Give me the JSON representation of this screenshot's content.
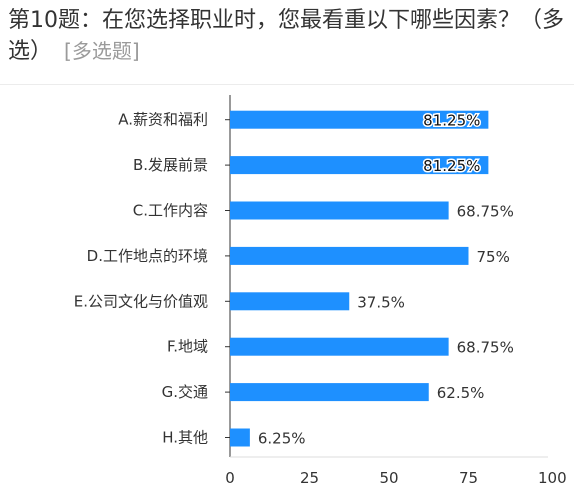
{
  "question": {
    "title": "第10题：在您选择职业时，您最看重以下哪些因素？（多选）",
    "tag": "[多选题]"
  },
  "colors": {
    "bar": "#1e90ff",
    "axis": "#333333",
    "label_highlight": "#ffffff"
  },
  "chart_data": {
    "type": "bar",
    "orientation": "horizontal",
    "categories": [
      "A.薪资和福利",
      "B.发展前景",
      "C.工作内容",
      "D.工作地点的环境",
      "E.公司文化与价值观",
      "F.地域",
      "G.交通",
      "H.其他"
    ],
    "values": [
      81.25,
      81.25,
      68.75,
      75,
      37.5,
      68.75,
      62.5,
      6.25
    ],
    "value_labels": [
      "81.25%",
      "81.25%",
      "68.75%",
      "75%",
      "37.5%",
      "68.75%",
      "62.5%",
      "6.25%"
    ],
    "label_inside": [
      true,
      true,
      false,
      false,
      false,
      false,
      false,
      false
    ],
    "xlim": [
      0,
      100
    ],
    "xticks": [
      "0",
      "25",
      "50",
      "75",
      "100"
    ],
    "title": "",
    "xlabel": "",
    "ylabel": "",
    "grid": false
  }
}
